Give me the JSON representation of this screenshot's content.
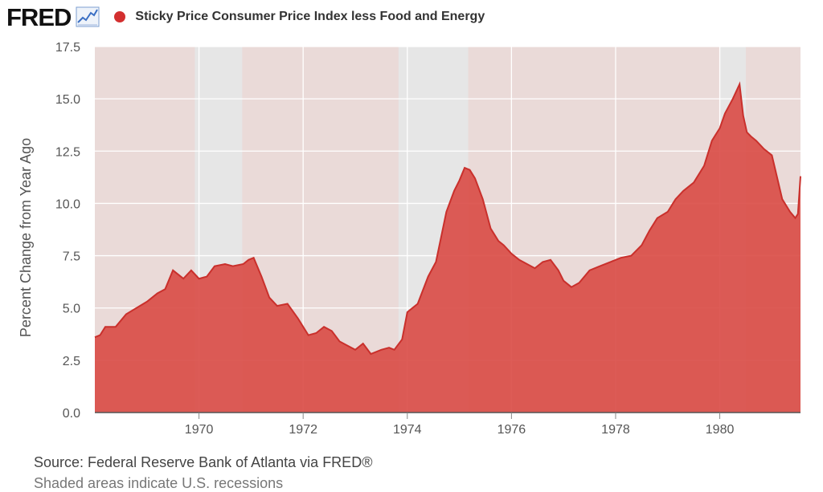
{
  "header": {
    "logo_text": "FRED",
    "series_title": "Sticky Price Consumer Price Index less Food and Energy"
  },
  "colors": {
    "series": "#d94a45",
    "series_line": "#c9302c",
    "plot_bg": "#eadad8",
    "recession": "#e6e6e6",
    "dot": "#d32f2f"
  },
  "source_text": "Source: Federal Reserve Bank of Atlanta via FRED®",
  "cut_text": "Shaded areas indicate U.S. recessions",
  "chart_data": {
    "type": "area",
    "title": "Sticky Price Consumer Price Index less Food and Energy",
    "ylabel": "Percent Change from Year Ago",
    "xlabel": "",
    "ylim": [
      0,
      17.5
    ],
    "xlim": [
      1968.0,
      1981.55
    ],
    "yticks": [
      "0.0",
      "2.5",
      "5.0",
      "7.5",
      "10.0",
      "12.5",
      "15.0",
      "17.5"
    ],
    "xticks": [
      "1970",
      "1972",
      "1974",
      "1976",
      "1978",
      "1980"
    ],
    "recessions": [
      [
        1969.92,
        1970.83
      ],
      [
        1973.83,
        1975.17
      ],
      [
        1980.0,
        1980.5
      ]
    ],
    "x": [
      1968.0,
      1968.1,
      1968.2,
      1968.4,
      1968.6,
      1968.8,
      1969.0,
      1969.2,
      1969.35,
      1969.5,
      1969.7,
      1969.85,
      1970.0,
      1970.15,
      1970.3,
      1970.5,
      1970.65,
      1970.85,
      1970.95,
      1971.05,
      1971.2,
      1971.35,
      1971.5,
      1971.7,
      1971.9,
      1972.1,
      1972.25,
      1972.4,
      1972.55,
      1972.7,
      1972.85,
      1973.0,
      1973.15,
      1973.3,
      1973.5,
      1973.65,
      1973.75,
      1973.9,
      1974.0,
      1974.2,
      1974.4,
      1974.55,
      1974.75,
      1974.9,
      1975.0,
      1975.1,
      1975.2,
      1975.3,
      1975.45,
      1975.6,
      1975.75,
      1975.85,
      1976.0,
      1976.15,
      1976.3,
      1976.45,
      1976.6,
      1976.75,
      1976.9,
      1977.0,
      1977.15,
      1977.3,
      1977.5,
      1977.7,
      1977.9,
      1978.1,
      1978.3,
      1978.5,
      1978.65,
      1978.8,
      1979.0,
      1979.15,
      1979.3,
      1979.5,
      1979.7,
      1979.85,
      1980.0,
      1980.1,
      1980.25,
      1980.38,
      1980.45,
      1980.52,
      1980.6,
      1980.7,
      1980.85,
      1981.0,
      1981.2,
      1981.35,
      1981.45,
      1981.5,
      1981.55
    ],
    "values": [
      3.6,
      3.7,
      4.1,
      4.1,
      4.7,
      5.0,
      5.3,
      5.7,
      5.9,
      6.8,
      6.4,
      6.8,
      6.4,
      6.5,
      7.0,
      7.1,
      7.0,
      7.1,
      7.3,
      7.4,
      6.5,
      5.5,
      5.1,
      5.2,
      4.5,
      3.7,
      3.8,
      4.1,
      3.9,
      3.4,
      3.2,
      3.0,
      3.3,
      2.8,
      3.0,
      3.1,
      3.0,
      3.5,
      4.8,
      5.2,
      6.5,
      7.2,
      9.6,
      10.6,
      11.1,
      11.7,
      11.6,
      11.2,
      10.2,
      8.8,
      8.2,
      8.0,
      7.6,
      7.3,
      7.1,
      6.9,
      7.2,
      7.3,
      6.8,
      6.3,
      6.0,
      6.2,
      6.8,
      7.0,
      7.2,
      7.4,
      7.5,
      8.0,
      8.7,
      9.3,
      9.6,
      10.2,
      10.6,
      11.0,
      11.8,
      13.0,
      13.6,
      14.3,
      15.0,
      15.7,
      14.2,
      13.4,
      13.2,
      13.0,
      12.6,
      12.3,
      10.2,
      9.6,
      9.3,
      9.5,
      11.3
    ],
    "series": [
      {
        "name": "Sticky Price Consumer Price Index less Food and Energy"
      }
    ]
  }
}
